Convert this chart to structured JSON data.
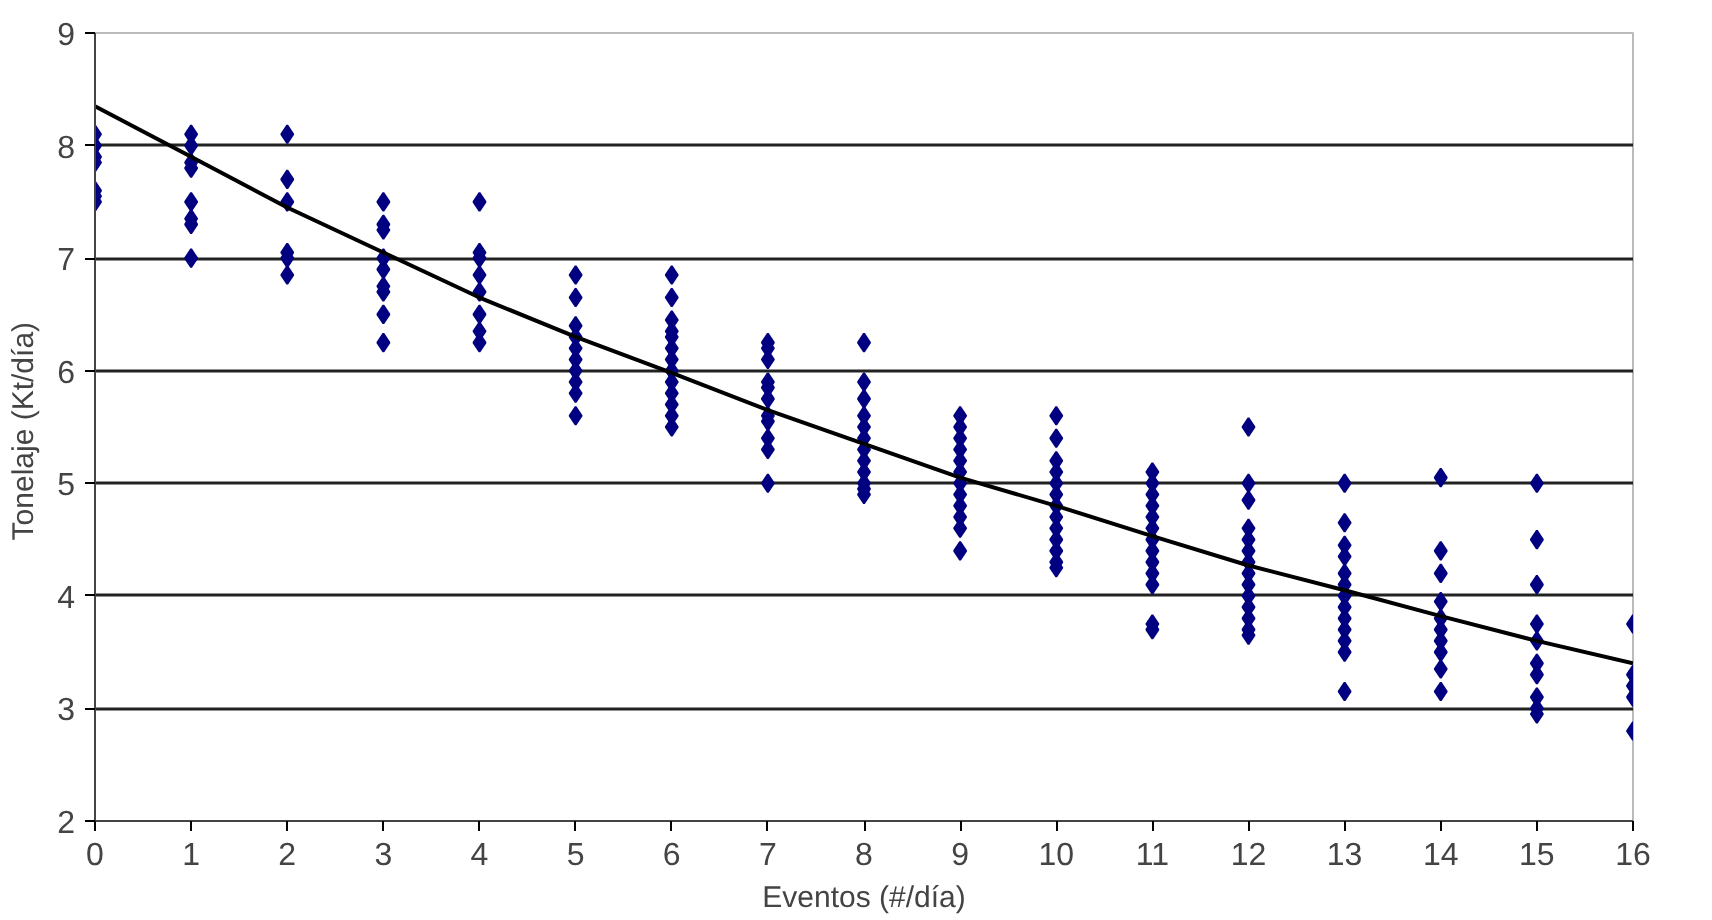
{
  "chart_data": {
    "type": "scatter",
    "xlabel": "Eventos (#/día)",
    "ylabel": "Tonelaje  (Kt/día)",
    "xlim": [
      0,
      16
    ],
    "ylim": [
      2,
      9
    ],
    "xticks": [
      0,
      1,
      2,
      3,
      4,
      5,
      6,
      7,
      8,
      9,
      10,
      11,
      12,
      13,
      14,
      15,
      16
    ],
    "yticks": [
      2,
      3,
      4,
      5,
      6,
      7,
      8,
      9
    ],
    "grid": "y",
    "marker": "diamond",
    "series": [
      {
        "color": "#000080",
        "x": [
          0,
          0,
          0,
          0,
          0,
          0,
          0,
          1,
          1,
          1,
          1,
          1,
          1,
          1,
          1,
          2,
          2,
          2,
          2,
          2,
          2,
          3,
          3,
          3,
          3,
          3,
          3,
          3,
          3,
          3,
          4,
          4,
          4,
          4,
          4,
          4,
          4,
          4,
          5,
          5,
          5,
          5,
          5,
          5,
          5,
          5,
          5,
          5,
          6,
          6,
          6,
          6,
          6,
          6,
          6,
          6,
          6,
          6,
          6,
          6,
          6,
          7,
          7,
          7,
          7,
          7,
          7,
          7,
          7,
          7,
          7,
          7,
          8,
          8,
          8,
          8,
          8,
          8,
          8,
          8,
          8,
          8,
          8,
          8,
          9,
          9,
          9,
          9,
          9,
          9,
          9,
          9,
          9,
          9,
          9,
          9,
          10,
          10,
          10,
          10,
          10,
          10,
          10,
          10,
          10,
          10,
          10,
          10,
          10,
          11,
          11,
          11,
          11,
          11,
          11,
          11,
          11,
          11,
          11,
          11,
          11,
          11,
          12,
          12,
          12,
          12,
          12,
          12,
          12,
          12,
          12,
          12,
          12,
          12,
          12,
          12,
          13,
          13,
          13,
          13,
          13,
          13,
          13,
          13,
          13,
          13,
          13,
          13,
          13,
          14,
          14,
          14,
          14,
          14,
          14,
          14,
          14,
          14,
          14,
          15,
          15,
          15,
          15,
          15,
          15,
          15,
          15,
          15,
          15,
          16,
          16,
          16,
          16,
          16
        ],
        "values": [
          8.1,
          8.0,
          7.9,
          7.85,
          7.6,
          7.55,
          7.5,
          8.1,
          8.0,
          7.85,
          7.8,
          7.5,
          7.35,
          7.3,
          7.0,
          8.1,
          7.7,
          7.5,
          7.05,
          7.0,
          6.85,
          7.5,
          7.3,
          7.25,
          7.0,
          6.9,
          6.75,
          6.7,
          6.5,
          6.25,
          7.5,
          7.05,
          7.0,
          6.85,
          6.7,
          6.5,
          6.35,
          6.25,
          6.85,
          6.65,
          6.4,
          6.3,
          6.2,
          6.1,
          6.0,
          5.9,
          5.8,
          5.6,
          6.85,
          6.65,
          6.45,
          6.35,
          6.3,
          6.2,
          6.1,
          6.0,
          5.9,
          5.8,
          5.7,
          5.6,
          5.5,
          6.25,
          6.2,
          6.1,
          5.9,
          5.85,
          5.75,
          5.6,
          5.55,
          5.4,
          5.3,
          5.0,
          6.25,
          5.9,
          5.75,
          5.6,
          5.5,
          5.4,
          5.3,
          5.2,
          5.1,
          5.0,
          4.95,
          4.9,
          5.6,
          5.5,
          5.4,
          5.3,
          5.2,
          5.1,
          5.0,
          4.9,
          4.8,
          4.7,
          4.6,
          4.4,
          5.6,
          5.4,
          5.2,
          5.1,
          5.0,
          4.9,
          4.8,
          4.7,
          4.6,
          4.5,
          4.4,
          4.3,
          4.25,
          5.1,
          5.0,
          4.9,
          4.8,
          4.7,
          4.6,
          4.5,
          4.4,
          4.3,
          4.2,
          4.1,
          3.75,
          3.7,
          5.5,
          5.0,
          4.85,
          4.6,
          4.5,
          4.4,
          4.3,
          4.2,
          4.1,
          4.0,
          3.9,
          3.8,
          3.7,
          3.65,
          5.0,
          4.65,
          4.45,
          4.35,
          4.2,
          4.1,
          4.0,
          3.9,
          3.8,
          3.7,
          3.6,
          3.5,
          3.15,
          5.05,
          4.4,
          4.2,
          3.95,
          3.8,
          3.7,
          3.6,
          3.5,
          3.35,
          3.15,
          5.0,
          4.5,
          4.1,
          3.75,
          3.6,
          3.4,
          3.3,
          3.1,
          3.0,
          2.95,
          3.75,
          3.3,
          3.2,
          3.1,
          2.8
        ]
      },
      {
        "type": "line",
        "color": "#000000",
        "marker": "none",
        "line_style": "solid",
        "x": [
          0,
          1,
          2,
          3,
          4,
          5,
          6,
          7,
          8,
          9,
          10,
          11,
          12,
          13,
          14,
          15,
          16
        ],
        "values": [
          8.35,
          7.9,
          7.45,
          7.05,
          6.65,
          6.3,
          5.98,
          5.65,
          5.35,
          5.05,
          4.8,
          4.53,
          4.27,
          4.05,
          3.82,
          3.6,
          3.4
        ]
      }
    ]
  }
}
